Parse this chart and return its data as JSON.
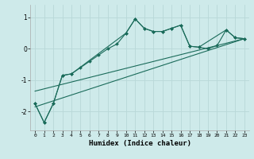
{
  "xlabel": "Humidex (Indice chaleur)",
  "bg_color": "#ceeaea",
  "grid_color": "#b8d8d8",
  "line_color": "#1a6b5a",
  "xlim": [
    -0.5,
    23.5
  ],
  "ylim": [
    -2.6,
    1.4
  ],
  "xticks": [
    0,
    1,
    2,
    3,
    4,
    5,
    6,
    7,
    8,
    9,
    10,
    11,
    12,
    13,
    14,
    15,
    16,
    17,
    18,
    19,
    20,
    21,
    22,
    23
  ],
  "yticks": [
    -2,
    -1,
    0,
    1
  ],
  "series1_x": [
    0,
    1,
    2,
    3,
    4,
    5,
    6,
    7,
    8,
    9,
    10,
    11,
    12,
    13,
    14,
    15,
    16,
    17,
    18,
    19,
    20,
    21,
    22,
    23
  ],
  "series1_y": [
    -1.75,
    -2.35,
    -1.75,
    -0.85,
    -0.8,
    -0.6,
    -0.4,
    -0.2,
    0.0,
    0.15,
    0.5,
    0.95,
    0.65,
    0.55,
    0.55,
    0.65,
    0.75,
    0.08,
    0.05,
    0.0,
    0.1,
    0.6,
    0.35,
    0.32
  ],
  "series2_x": [
    0,
    1,
    2,
    3,
    4,
    10,
    11,
    12,
    13,
    14,
    15,
    16,
    17,
    18,
    21,
    22,
    23
  ],
  "series2_y": [
    -1.75,
    -2.35,
    -1.75,
    -0.85,
    -0.8,
    0.5,
    0.95,
    0.65,
    0.55,
    0.55,
    0.65,
    0.75,
    0.08,
    0.05,
    0.6,
    0.35,
    0.32
  ],
  "line1_x": [
    0,
    23
  ],
  "line1_y": [
    -1.85,
    0.32
  ],
  "line2_x": [
    0,
    23
  ],
  "line2_y": [
    -1.35,
    0.32
  ]
}
